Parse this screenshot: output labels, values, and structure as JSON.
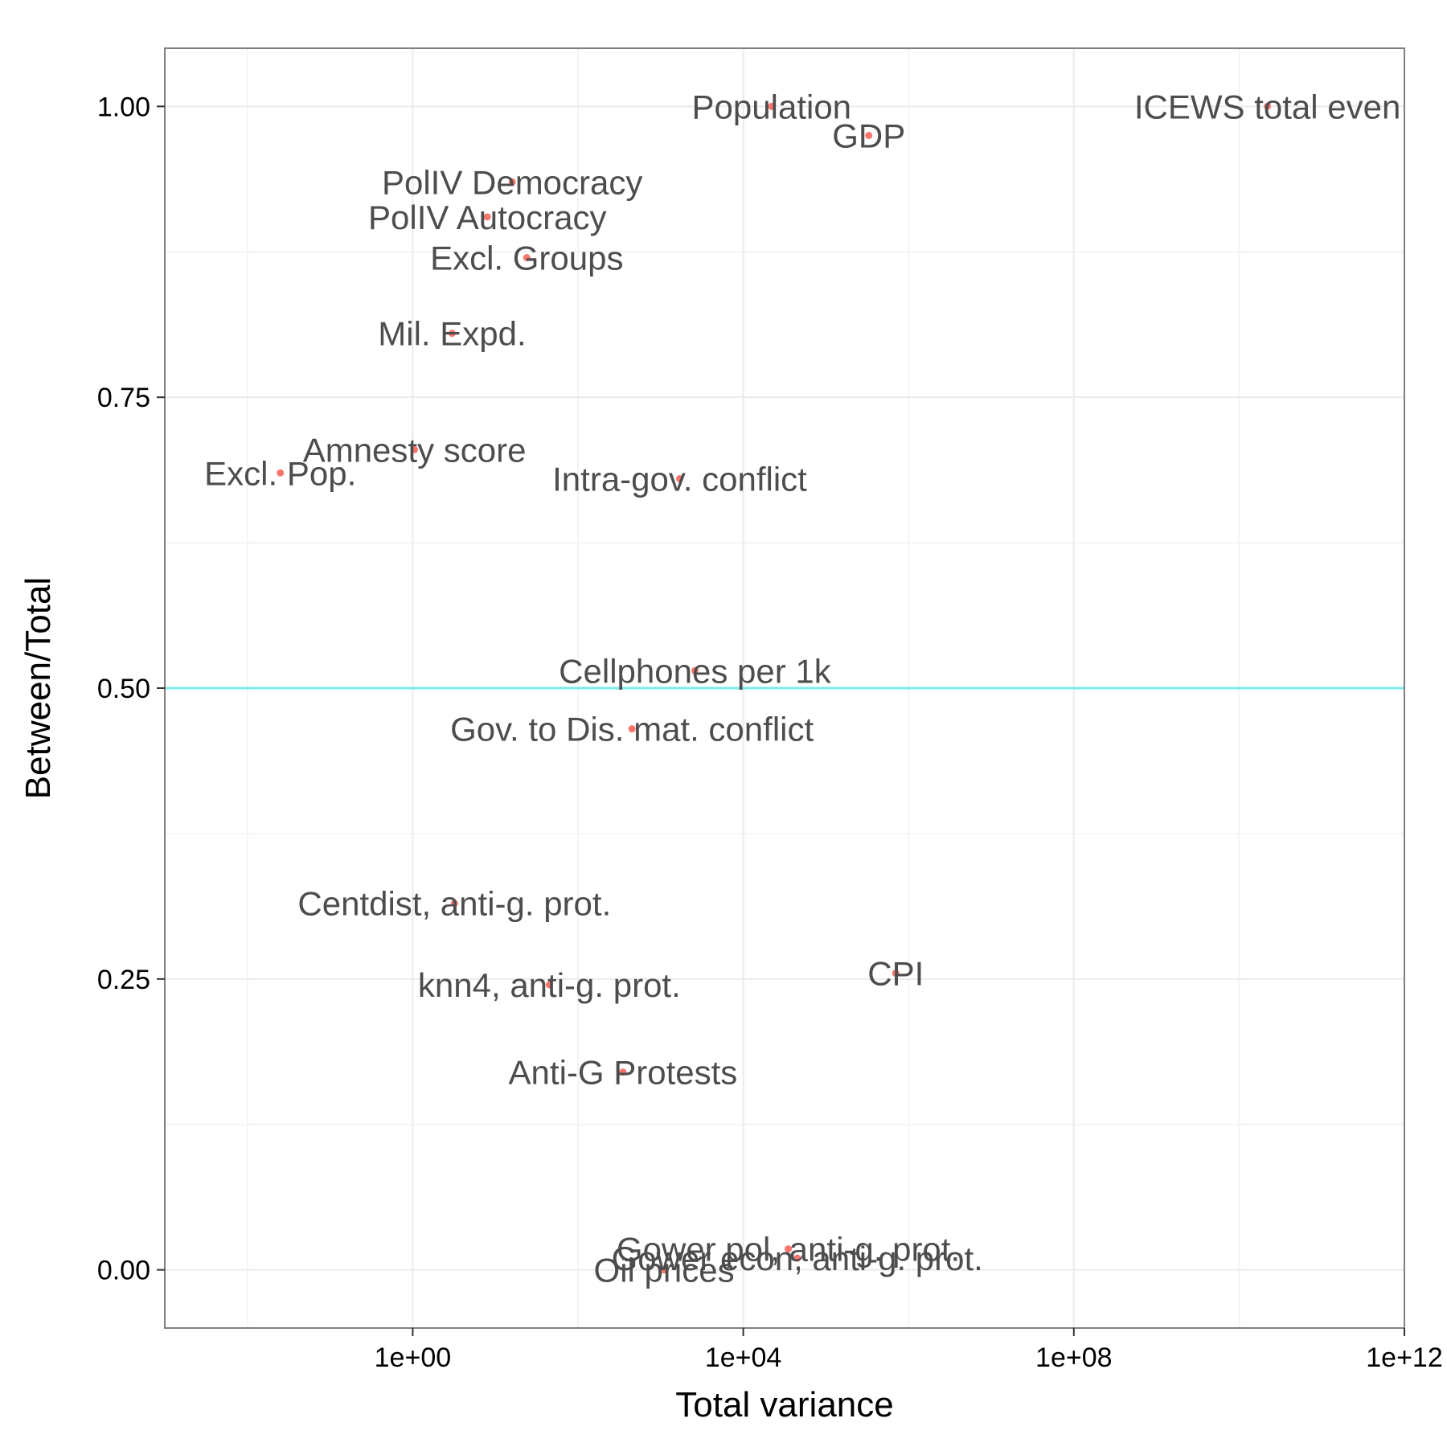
{
  "chart_data": {
    "type": "scatter",
    "title": "",
    "xlabel": "Total variance",
    "ylabel": "Between/Total",
    "x_scale": "log10",
    "xlim": [
      0.001,
      1000000000000.0
    ],
    "ylim": [
      -0.05,
      1.05
    ],
    "x_ticks": [
      {
        "value": 1,
        "label": "1e+00"
      },
      {
        "value": 10000,
        "label": "1e+04"
      },
      {
        "value": 100000000,
        "label": "1e+08"
      },
      {
        "value": 1000000000000,
        "label": "1e+12"
      }
    ],
    "y_ticks": [
      {
        "value": 0,
        "label": "0.00"
      },
      {
        "value": 0.25,
        "label": "0.25"
      },
      {
        "value": 0.5,
        "label": "0.50"
      },
      {
        "value": 0.75,
        "label": "0.75"
      },
      {
        "value": 1,
        "label": "1.00"
      }
    ],
    "reference_line": {
      "y": 0.5,
      "color": "#7fe8e8"
    },
    "grid": true,
    "colors": {
      "point": "#f8766d",
      "label": "#4d4d4d",
      "panel_border": "#7f7f7f",
      "grid": "#ebebeb"
    },
    "points": [
      {
        "label": "ICEWS total even",
        "x": 22000000000.0,
        "y": 1.0
      },
      {
        "label": "Population",
        "x": 22000.0,
        "y": 1.0
      },
      {
        "label": "GDP",
        "x": 330000.0,
        "y": 0.975
      },
      {
        "label": "PolIV Democracy",
        "x": 16,
        "y": 0.935
      },
      {
        "label": "PolIV Autocracy",
        "x": 8,
        "y": 0.905
      },
      {
        "label": "Excl. Groups",
        "x": 24,
        "y": 0.87
      },
      {
        "label": "Mil. Expd.",
        "x": 3,
        "y": 0.805
      },
      {
        "label": "Amnesty score",
        "x": 1.05,
        "y": 0.705
      },
      {
        "label": "Excl. Pop.",
        "x": 0.025,
        "y": 0.685
      },
      {
        "label": "Intra-gov. conflict",
        "x": 1700,
        "y": 0.68
      },
      {
        "label": "Cellphones per 1k",
        "x": 2600,
        "y": 0.515
      },
      {
        "label": "Gov. to Dis. mat. conflict",
        "x": 450,
        "y": 0.465
      },
      {
        "label": "Centdist, anti-g. prot.",
        "x": 3.2,
        "y": 0.315
      },
      {
        "label": "CPI",
        "x": 700000.0,
        "y": 0.255
      },
      {
        "label": "knn4, anti-g. prot.",
        "x": 45,
        "y": 0.245
      },
      {
        "label": "Anti-G Protests",
        "x": 350,
        "y": 0.17
      },
      {
        "label": "Gower pol, anti-g. prot.",
        "x": 35000.0,
        "y": 0.018
      },
      {
        "label": "Gower econ, anti-g. prot.",
        "x": 45000.0,
        "y": 0.01
      },
      {
        "label": "Oil prices",
        "x": 1100,
        "y": 0.0
      }
    ]
  }
}
